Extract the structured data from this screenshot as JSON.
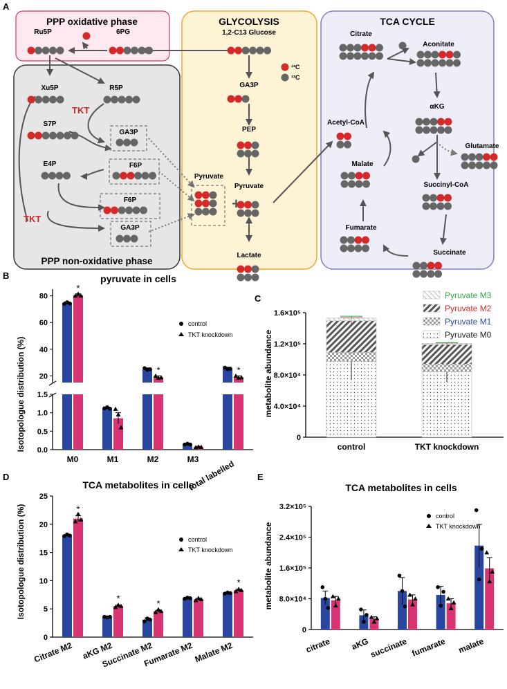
{
  "panelA": {
    "letter": "A",
    "ppp_ox_title": "PPP oxidative phase",
    "glyco_title": "GLYCOLYSIS",
    "tca_title": "TCA CYCLE",
    "ppp_nonox_title": "PPP non-oxidative phase",
    "tkt": "TKT",
    "legend_13c": "¹³C",
    "legend_12c": "¹²C",
    "colors": {
      "c13": "#d42a2a",
      "c12": "#666666",
      "ox_fill": "#fde9ef",
      "ox_border": "#d6336c",
      "glyco_fill": "#fff3d6",
      "glyco_border": "#f0a830",
      "tca_fill": "#eeeef9",
      "tca_border": "#7f7fc0",
      "nonox_fill": "#e6e6e6"
    },
    "metabolites": [
      {
        "id": "ru5p",
        "label": "Ru5P",
        "pattern": [
          1,
          0,
          0,
          0,
          0
        ]
      },
      {
        "id": "sixpg",
        "label": "6PG",
        "pattern": [
          1,
          1,
          0,
          0,
          0,
          0
        ]
      },
      {
        "id": "glucose",
        "label": "1,2-C13 Glucose",
        "pattern": [
          1,
          1,
          0,
          0,
          0,
          0
        ]
      },
      {
        "id": "xu5p",
        "label": "Xu5P",
        "pattern": [
          1,
          0,
          0,
          0,
          0
        ]
      },
      {
        "id": "r5p",
        "label": "R5P",
        "pattern": [
          0,
          0,
          0,
          0,
          0
        ]
      },
      {
        "id": "s7p",
        "label": "S7P",
        "pattern": [
          1,
          1,
          0,
          0,
          0,
          0,
          0
        ]
      },
      {
        "id": "ga3p1",
        "label": "GA3P",
        "pattern": [
          0,
          0,
          0
        ]
      },
      {
        "id": "e4p",
        "label": "E4P",
        "pattern": [
          0,
          0,
          0,
          0
        ]
      },
      {
        "id": "f6p1",
        "label": "F6P",
        "pattern": [
          0,
          1,
          1,
          0,
          0,
          0
        ]
      },
      {
        "id": "f6p2",
        "label": "F6P",
        "pattern": [
          1,
          1,
          0,
          0,
          0,
          0
        ]
      },
      {
        "id": "ga3p2",
        "label": "GA3P",
        "pattern": [
          0,
          0,
          0
        ]
      },
      {
        "id": "ga3p_g",
        "label": "GA3P",
        "pattern": [
          1,
          1,
          0
        ]
      },
      {
        "id": "pep",
        "label": "PEP",
        "pattern": [
          1,
          1,
          0
        ]
      },
      {
        "id": "pyr_g",
        "label": "Pyruvate",
        "pattern": [
          1,
          1,
          0
        ]
      },
      {
        "id": "lactate",
        "label": "Lactate",
        "pattern": [
          1,
          1,
          0
        ]
      },
      {
        "id": "pyr_mix",
        "label": "Pyruvate",
        "pattern": [
          0,
          1,
          1
        ]
      },
      {
        "id": "citrate",
        "label": "Citrate",
        "pattern": [
          0,
          0,
          0,
          1,
          1,
          0
        ]
      },
      {
        "id": "aconitate",
        "label": "Aconitate",
        "pattern": [
          0,
          0,
          0,
          1,
          1,
          0
        ]
      },
      {
        "id": "akg",
        "label": "αKG",
        "pattern": [
          0,
          0,
          0,
          1,
          1
        ]
      },
      {
        "id": "glutamate",
        "label": "Glutamate",
        "pattern": [
          0,
          0,
          0,
          1,
          1
        ]
      },
      {
        "id": "succoa",
        "label": "Succinyl-CoA",
        "pattern": [
          0,
          0,
          1,
          1
        ]
      },
      {
        "id": "succinate",
        "label": "Succinate",
        "pattern": [
          0,
          0,
          1,
          1
        ]
      },
      {
        "id": "fumarate",
        "label": "Fumarate",
        "pattern": [
          0,
          0,
          1,
          1
        ]
      },
      {
        "id": "malate",
        "label": "Malate",
        "pattern": [
          0,
          0,
          1,
          1
        ]
      },
      {
        "id": "acetylcoa",
        "label": "Acetyl-CoA",
        "pattern": [
          1,
          1
        ]
      }
    ]
  },
  "chart_data": [
    {
      "panel": "B",
      "type": "bar",
      "title": "pyruvate in cells",
      "ylabel": "Isotopologue distribution (%)",
      "categories": [
        "M0",
        "M1",
        "M2",
        "M3",
        "total labelled"
      ],
      "series": [
        {
          "name": "control",
          "color": "#2846a0",
          "values": [
            74.5,
            1.13,
            25.0,
            0.15,
            25.5
          ],
          "errors": [
            1.0,
            0.02,
            1.0,
            0.02,
            1.0
          ],
          "points": [
            [
              74.0,
              75.2,
              74.3
            ],
            [
              1.12,
              1.15,
              1.11
            ],
            [
              25.8,
              24.5,
              25.0
            ],
            [
              0.14,
              0.16,
              0.14
            ],
            [
              26.2,
              25.0,
              25.4
            ]
          ],
          "marker": "circle"
        },
        {
          "name": "TKT knockdown",
          "color": "#d63472",
          "values": [
            80.5,
            0.85,
            19.0,
            0.07,
            19.0
          ],
          "errors": [
            1.0,
            0.15,
            1.0,
            0.02,
            1.0
          ],
          "points": [
            [
              80.0,
              81.5,
              80.0
            ],
            [
              1.1,
              0.95,
              0.6
            ],
            [
              20.0,
              18.5,
              18.8
            ],
            [
              0.06,
              0.08,
              0.07
            ],
            [
              20.0,
              18.5,
              18.8
            ]
          ],
          "marker": "triangle"
        }
      ],
      "significance": [
        false,
        false,
        true,
        false,
        true
      ],
      "ylim_lower": [
        0,
        1.5
      ],
      "ylim_upper": [
        15,
        85
      ],
      "ticks_lower": [
        "0.0",
        "0.5",
        "1.0",
        "1.5"
      ],
      "ticks_upper": [
        "20",
        "40",
        "60",
        "80"
      ]
    },
    {
      "panel": "C",
      "type": "bar",
      "stacked": true,
      "ylabel": "metabolite abundance",
      "categories": [
        "control",
        "TKT knockdown"
      ],
      "series": [
        {
          "name": "Pyruvate M0",
          "text_color": "#222222",
          "values": [
            97500,
            84000
          ]
        },
        {
          "name": "Pyruvate M1",
          "text_color": "#2846a0",
          "values": [
            11500,
            10000
          ]
        },
        {
          "name": "Pyruvate M2",
          "text_color": "#d42a2a",
          "values": [
            40500,
            25000
          ]
        },
        {
          "name": "Pyruvate M3",
          "text_color": "#2ea84a",
          "values": [
            3500,
            1500
          ]
        }
      ],
      "errors": {
        "M0": [
          24000,
          13000
        ],
        "M1": [
          2000,
          2000
        ],
        "M2": [
          4000,
          2000
        ],
        "M3": [
          2500,
          1000
        ]
      },
      "ylim": [
        0,
        160000
      ],
      "ticks": [
        {
          "v": 0,
          "label": "0"
        },
        {
          "v": 40000,
          "label": "4.0×10⁴"
        },
        {
          "v": 80000,
          "label": "8.0×10⁴"
        },
        {
          "v": 120000,
          "label": "1.2×10⁵"
        },
        {
          "v": 160000,
          "label": "1.6×10⁵"
        }
      ]
    },
    {
      "panel": "D",
      "type": "bar",
      "title": "TCA metabolites in cells",
      "ylabel": "Isotopologue distribution (%)",
      "categories": [
        "Citrate M2",
        "aKG M2",
        "Succinate M2",
        "Fumarate M2",
        "Malate M2"
      ],
      "series": [
        {
          "name": "control",
          "color": "#2846a0",
          "values": [
            18.0,
            3.6,
            3.1,
            6.9,
            7.8
          ],
          "errors": [
            0.2,
            0.1,
            0.3,
            0.15,
            0.1
          ],
          "points": [
            [
              17.9,
              18.2,
              18.0
            ],
            [
              3.6,
              3.5,
              3.6
            ],
            [
              2.8,
              3.3,
              3.1
            ],
            [
              6.8,
              7.0,
              6.9
            ],
            [
              7.7,
              7.9,
              7.8
            ]
          ],
          "marker": "circle"
        },
        {
          "name": "TKT knockdown",
          "color": "#d63472",
          "values": [
            21.0,
            5.5,
            4.6,
            6.7,
            8.3
          ],
          "errors": [
            0.5,
            0.2,
            0.2,
            0.2,
            0.2
          ],
          "points": [
            [
              20.5,
              21.8,
              20.8
            ],
            [
              5.3,
              5.7,
              5.5
            ],
            [
              4.4,
              4.9,
              4.6
            ],
            [
              6.5,
              6.9,
              6.7
            ],
            [
              8.1,
              8.5,
              8.3
            ]
          ],
          "marker": "triangle"
        }
      ],
      "significance": [
        true,
        true,
        true,
        false,
        true
      ],
      "ylim": [
        0,
        25
      ],
      "ticks": [
        "0",
        "5",
        "10",
        "15",
        "20",
        "25"
      ]
    },
    {
      "panel": "E",
      "type": "bar",
      "title": "TCA metabolites in cells",
      "ylabel": "metabolite abundance",
      "categories": [
        "citrate",
        "aKG",
        "succinate",
        "fumarate",
        "malate"
      ],
      "series": [
        {
          "name": "control",
          "color": "#2846a0",
          "values": [
            82000,
            37000,
            100000,
            90000,
            218000
          ],
          "errors": [
            18000,
            14000,
            35000,
            22000,
            55000
          ],
          "points": [
            [
              110000,
              80000,
              56000
            ],
            [
              52000,
              20000,
              38000
            ],
            [
              140000,
              100000,
              60000
            ],
            [
              110000,
              62000,
              98000
            ],
            [
              310000,
              130000,
              210000
            ]
          ],
          "marker": "circle"
        },
        {
          "name": "TKT knockdown",
          "color": "#d63472",
          "values": [
            76000,
            27000,
            78000,
            68000,
            159000
          ],
          "errors": [
            10000,
            6000,
            12000,
            12000,
            28000
          ],
          "points": [
            [
              86000,
              62000,
              80000
            ],
            [
              32000,
              20000,
              29000
            ],
            [
              90000,
              65000,
              80000
            ],
            [
              80000,
              55000,
              70000
            ],
            [
              200000,
              125000,
              150000
            ]
          ],
          "marker": "triangle"
        }
      ],
      "ylim": [
        0,
        320000
      ],
      "ticks": [
        {
          "v": 0,
          "label": "0"
        },
        {
          "v": 80000,
          "label": "8.0×10⁴"
        },
        {
          "v": 160000,
          "label": "1.6×10⁵"
        },
        {
          "v": 240000,
          "label": "2.4×10⁵"
        },
        {
          "v": 320000,
          "label": "3.2×10⁵"
        }
      ]
    }
  ],
  "panel_letters": {
    "b": "B",
    "c": "C",
    "d": "D",
    "e": "E"
  }
}
